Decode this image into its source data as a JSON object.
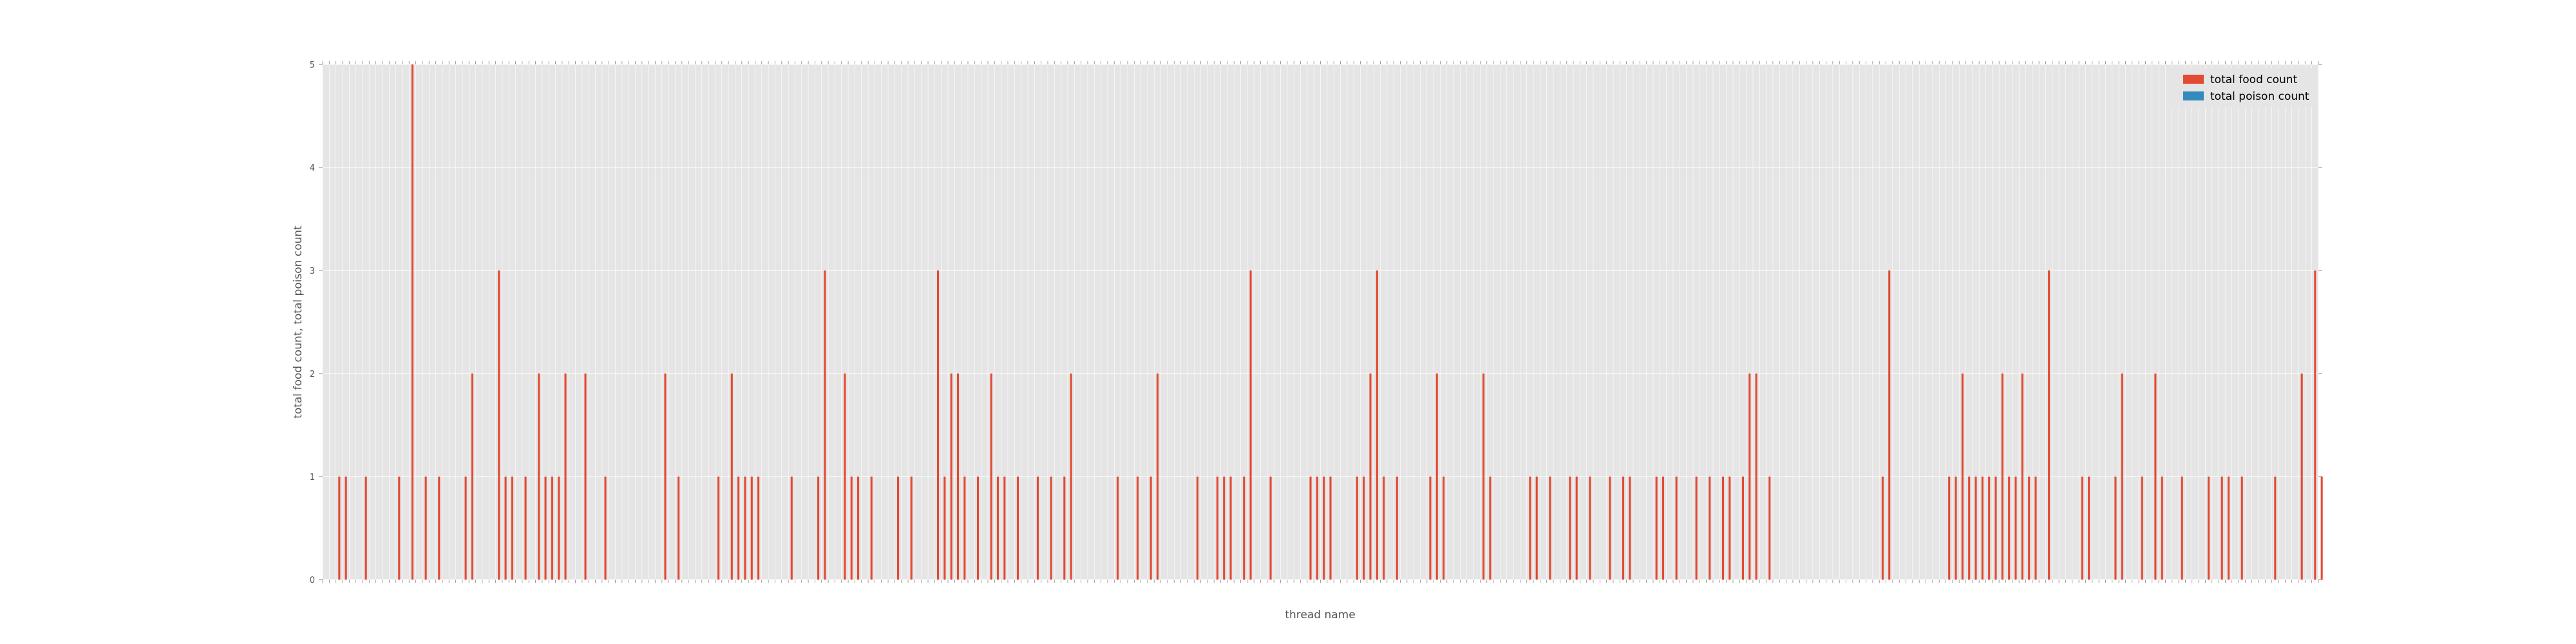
{
  "chart_data": {
    "type": "bar",
    "xlabel": "thread name",
    "ylabel": "total food count, total poison count",
    "ylim": [
      0,
      5
    ],
    "yticks": [
      0,
      1,
      2,
      3,
      4,
      5
    ],
    "grid": true,
    "legend_position": "top-right",
    "legend": [
      "total food count",
      "total poison count"
    ],
    "category_count": 300,
    "series": [
      {
        "name": "total food count",
        "color": "#E24A33",
        "points": [
          [
            2,
            1
          ],
          [
            3,
            1
          ],
          [
            6,
            1
          ],
          [
            11,
            1
          ],
          [
            13,
            5
          ],
          [
            15,
            1
          ],
          [
            17,
            1
          ],
          [
            21,
            1
          ],
          [
            22,
            2
          ],
          [
            26,
            3
          ],
          [
            27,
            1
          ],
          [
            28,
            1
          ],
          [
            30,
            1
          ],
          [
            32,
            2
          ],
          [
            33,
            1
          ],
          [
            34,
            1
          ],
          [
            35,
            1
          ],
          [
            36,
            2
          ],
          [
            39,
            2
          ],
          [
            42,
            1
          ],
          [
            51,
            2
          ],
          [
            53,
            1
          ],
          [
            59,
            1
          ],
          [
            61,
            2
          ],
          [
            62,
            1
          ],
          [
            63,
            1
          ],
          [
            64,
            1
          ],
          [
            65,
            1
          ],
          [
            70,
            1
          ],
          [
            74,
            1
          ],
          [
            75,
            3
          ],
          [
            78,
            2
          ],
          [
            79,
            1
          ],
          [
            80,
            1
          ],
          [
            82,
            1
          ],
          [
            86,
            1
          ],
          [
            88,
            1
          ],
          [
            92,
            3
          ],
          [
            93,
            1
          ],
          [
            94,
            2
          ],
          [
            95,
            2
          ],
          [
            96,
            1
          ],
          [
            98,
            1
          ],
          [
            100,
            2
          ],
          [
            101,
            1
          ],
          [
            102,
            1
          ],
          [
            104,
            1
          ],
          [
            107,
            1
          ],
          [
            109,
            1
          ],
          [
            111,
            1
          ],
          [
            112,
            2
          ],
          [
            119,
            1
          ],
          [
            122,
            1
          ],
          [
            124,
            1
          ],
          [
            125,
            2
          ],
          [
            131,
            1
          ],
          [
            134,
            1
          ],
          [
            135,
            1
          ],
          [
            136,
            1
          ],
          [
            138,
            1
          ],
          [
            139,
            3
          ],
          [
            142,
            1
          ],
          [
            148,
            1
          ],
          [
            149,
            1
          ],
          [
            150,
            1
          ],
          [
            151,
            1
          ],
          [
            155,
            1
          ],
          [
            156,
            1
          ],
          [
            157,
            2
          ],
          [
            158,
            3
          ],
          [
            159,
            1
          ],
          [
            161,
            1
          ],
          [
            166,
            1
          ],
          [
            167,
            2
          ],
          [
            168,
            1
          ],
          [
            174,
            2
          ],
          [
            175,
            1
          ],
          [
            181,
            1
          ],
          [
            182,
            1
          ],
          [
            184,
            1
          ],
          [
            187,
            1
          ],
          [
            188,
            1
          ],
          [
            190,
            1
          ],
          [
            193,
            1
          ],
          [
            195,
            1
          ],
          [
            196,
            1
          ],
          [
            200,
            1
          ],
          [
            201,
            1
          ],
          [
            203,
            1
          ],
          [
            206,
            1
          ],
          [
            208,
            1
          ],
          [
            210,
            1
          ],
          [
            211,
            1
          ],
          [
            213,
            1
          ],
          [
            214,
            2
          ],
          [
            215,
            2
          ],
          [
            217,
            1
          ],
          [
            234,
            1
          ],
          [
            235,
            3
          ],
          [
            244,
            1
          ],
          [
            245,
            1
          ],
          [
            246,
            2
          ],
          [
            247,
            1
          ],
          [
            248,
            1
          ],
          [
            249,
            1
          ],
          [
            250,
            1
          ],
          [
            251,
            1
          ],
          [
            252,
            2
          ],
          [
            253,
            1
          ],
          [
            254,
            1
          ],
          [
            255,
            2
          ],
          [
            256,
            1
          ],
          [
            257,
            1
          ],
          [
            259,
            3
          ],
          [
            264,
            1
          ],
          [
            265,
            1
          ],
          [
            269,
            1
          ],
          [
            270,
            2
          ],
          [
            273,
            1
          ],
          [
            275,
            2
          ],
          [
            276,
            1
          ],
          [
            279,
            1
          ],
          [
            283,
            1
          ],
          [
            285,
            1
          ],
          [
            286,
            1
          ],
          [
            288,
            1
          ],
          [
            293,
            1
          ],
          [
            297,
            2
          ],
          [
            299,
            3
          ],
          [
            300,
            1
          ]
        ]
      },
      {
        "name": "total poison count",
        "color": "#348ABD",
        "points": []
      }
    ]
  }
}
